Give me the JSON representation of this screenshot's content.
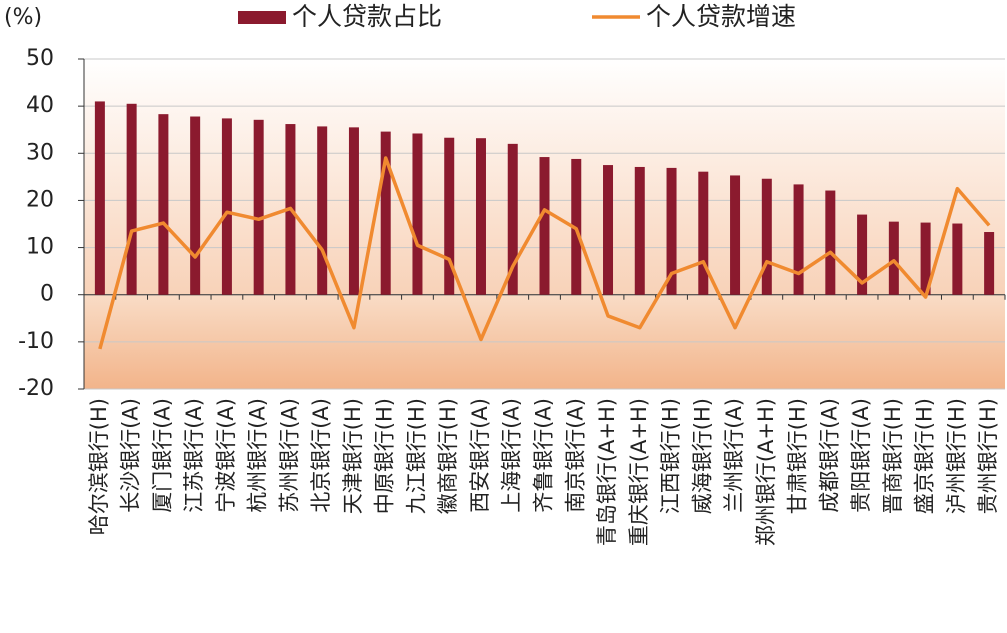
{
  "chart_data": {
    "type": "bar_line",
    "unit_label": "(%)",
    "categories": [
      "哈尔滨银行(H)",
      "长沙银行(A)",
      "厦门银行(A)",
      "江苏银行(A)",
      "宁波银行(A)",
      "杭州银行(A)",
      "苏州银行(A)",
      "北京银行(A)",
      "天津银行(H)",
      "中原银行(H)",
      "九江银行(H)",
      "徽商银行(H)",
      "西安银行(A)",
      "上海银行(A)",
      "齐鲁银行(A)",
      "南京银行(A)",
      "青岛银行(A+H)",
      "重庆银行(A+H)",
      "江西银行(H)",
      "威海银行(H)",
      "兰州银行(A)",
      "郑州银行(A+H)",
      "甘肃银行(H)",
      "成都银行(A)",
      "贵阳银行(A)",
      "晋商银行(H)",
      "盛京银行(H)",
      "泸州银行(H)",
      "贵州银行(H)"
    ],
    "series": [
      {
        "name": "个人贷款占比",
        "type": "bar",
        "color": "#8b1a2e",
        "values": [
          41,
          40.5,
          38.3,
          37.8,
          37.4,
          37.1,
          36.2,
          35.7,
          35.5,
          34.6,
          34.2,
          33.3,
          33.2,
          32,
          29.2,
          28.8,
          27.5,
          27.1,
          26.9,
          26.1,
          25.3,
          24.6,
          23.4,
          22.1,
          17,
          15.5,
          15.3,
          15.1,
          13.3
        ]
      },
      {
        "name": "个人贷款增速",
        "type": "line",
        "color": "#f08a30",
        "values": [
          -11.5,
          13.5,
          15.2,
          8,
          17.5,
          16,
          18.3,
          9.5,
          -7,
          29,
          10.5,
          7.5,
          -9.5,
          6,
          18,
          14,
          -4.5,
          -7,
          4.5,
          7,
          -7,
          7,
          4.5,
          9,
          2.5,
          7.2,
          -0.5,
          22.5,
          14.7
        ]
      }
    ],
    "ylim": [
      -20,
      50
    ],
    "yticks": [
      -20,
      -10,
      0,
      10,
      20,
      30,
      40,
      50
    ],
    "grid": true
  }
}
